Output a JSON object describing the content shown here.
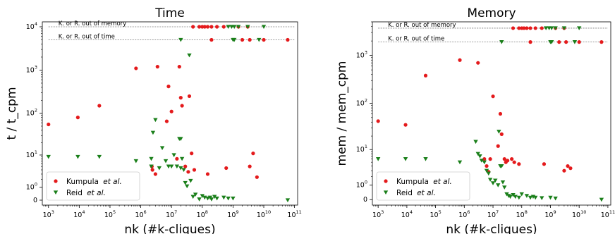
{
  "chart_data": [
    {
      "type": "scatter",
      "title": "Time",
      "xlabel": "nk (#k-cliques)",
      "ylabel": "t / t_cpm",
      "xscale": "log",
      "yscale": "symlog",
      "xlim": [
        630,
        126000000000
      ],
      "ylim": [
        -0.3,
        13000
      ],
      "xticks": [
        "10^3",
        "10^4",
        "10^5",
        "10^6",
        "10^7",
        "10^8",
        "10^9",
        "10^10",
        "10^11"
      ],
      "yticks": [
        "0",
        "10^0",
        "10^1",
        "10^2",
        "10^3",
        "10^4"
      ],
      "reference_lines": [
        {
          "label": "K. or R. out of memory",
          "y": 10000
        },
        {
          "label": "K. or R. out of time",
          "y": 5000
        }
      ],
      "legend": {
        "position": "lower-left"
      },
      "series": [
        {
          "name_prefix": "Kumpula",
          "name_italic": "et al.",
          "color": "#e41a1c",
          "marker": "circle",
          "points": [
            [
              1000,
              55
            ],
            [
              9000,
              80
            ],
            [
              45000,
              150
            ],
            [
              700000,
              1100
            ],
            [
              3500000,
              1200
            ],
            [
              8000000,
              420
            ],
            [
              18000000,
              1200
            ],
            [
              2300000,
              5
            ],
            [
              2400000,
              4
            ],
            [
              3000000,
              3
            ],
            [
              7000000,
              65
            ],
            [
              10000000,
              110
            ],
            [
              15000000,
              8
            ],
            [
              20000000,
              230
            ],
            [
              22000000,
              150
            ],
            [
              38000000,
              250
            ],
            [
              45000000,
              11
            ],
            [
              28000000,
              5
            ],
            [
              35000000,
              3.5
            ],
            [
              55000000,
              4
            ],
            [
              150000000,
              3
            ],
            [
              600000000,
              4.5
            ],
            [
              3500000000,
              5
            ],
            [
              4500000000,
              11
            ],
            [
              6000000000,
              2.4
            ],
            [
              50000000,
              10000
            ],
            [
              80000000,
              10000
            ],
            [
              100000000,
              10000
            ],
            [
              120000000,
              10000
            ],
            [
              150000000,
              10000
            ],
            [
              200000000,
              10000
            ],
            [
              300000000,
              10000
            ],
            [
              500000000,
              10000
            ],
            [
              1500000000,
              10000
            ],
            [
              3000000000,
              10000
            ],
            [
              200000000,
              5000
            ],
            [
              2000000000,
              5000
            ],
            [
              3500000000,
              5000
            ],
            [
              10000000000,
              5000
            ],
            [
              60000000000,
              5000
            ]
          ]
        },
        {
          "name_prefix": "Reid",
          "name_italic": "et al.",
          "color": "#1a7f1a",
          "marker": "triangle-down",
          "points": [
            [
              1000,
              9
            ],
            [
              9000,
              9
            ],
            [
              45000,
              9
            ],
            [
              700000,
              7
            ],
            [
              2200000,
              8
            ],
            [
              2200000,
              5
            ],
            [
              2500000,
              35
            ],
            [
              3000000,
              70
            ],
            [
              4000000,
              4.5
            ],
            [
              5000000,
              15
            ],
            [
              6500000,
              7
            ],
            [
              8000000,
              5
            ],
            [
              10000000,
              5
            ],
            [
              12000000,
              10
            ],
            [
              15000000,
              5
            ],
            [
              18000000,
              25
            ],
            [
              20000000,
              25
            ],
            [
              20000000,
              4.5
            ],
            [
              22000000,
              8
            ],
            [
              25000000,
              4
            ],
            [
              28000000,
              1.5
            ],
            [
              32000000,
              1.1
            ],
            [
              38000000,
              2200
            ],
            [
              42000000,
              1.8
            ],
            [
              50000000,
              0.2
            ],
            [
              60000000,
              0.35
            ],
            [
              80000000,
              0.05
            ],
            [
              100000000,
              0.25
            ],
            [
              120000000,
              0.15
            ],
            [
              150000000,
              0.1
            ],
            [
              180000000,
              0.15
            ],
            [
              200000000,
              0.05
            ],
            [
              250000000,
              0.2
            ],
            [
              300000000,
              0.1
            ],
            [
              500000000,
              0.15
            ],
            [
              700000000,
              0.1
            ],
            [
              1000000000,
              0.1
            ],
            [
              60000000000,
              0
            ],
            [
              20000000,
              5000
            ],
            [
              700000000,
              10000
            ],
            [
              900000000,
              10000
            ],
            [
              1100000000,
              10000
            ],
            [
              1500000000,
              10000
            ],
            [
              3000000000,
              10000
            ],
            [
              10000000000,
              10000
            ],
            [
              1000000000,
              5000
            ],
            [
              1100000000,
              5000
            ],
            [
              7000000000,
              5000
            ]
          ]
        }
      ]
    },
    {
      "type": "scatter",
      "title": "Memory",
      "xlabel": "nk (#k-cliques)",
      "ylabel": "mem / mem_cpm",
      "xscale": "log",
      "yscale": "symlog",
      "xlim": [
        630,
        126000000000
      ],
      "ylim": [
        -0.3,
        5000
      ],
      "xticks": [
        "10^3",
        "10^4",
        "10^5",
        "10^6",
        "10^7",
        "10^8",
        "10^9",
        "10^10",
        "10^11"
      ],
      "yticks": [
        "0",
        "10^0",
        "10^1",
        "10^2",
        "10^3"
      ],
      "reference_lines": [
        {
          "label": "K. or R. out of memory",
          "y": 3700
        },
        {
          "label": "K. or R. out of time",
          "y": 1900
        }
      ],
      "legend": {
        "position": "lower-left"
      },
      "series": [
        {
          "name_prefix": "Kumpula",
          "name_italic": "et al.",
          "color": "#e41a1c",
          "marker": "circle",
          "points": [
            [
              1000,
              42
            ],
            [
              9000,
              35
            ],
            [
              45000,
              380
            ],
            [
              700000,
              800
            ],
            [
              3000000,
              700
            ],
            [
              10000000,
              140
            ],
            [
              18000000,
              60
            ],
            [
              5000000,
              6
            ],
            [
              6000000,
              4
            ],
            [
              7000000,
              2.8
            ],
            [
              8000000,
              6
            ],
            [
              15000000,
              12
            ],
            [
              20000000,
              22
            ],
            [
              25000000,
              6
            ],
            [
              28000000,
              5
            ],
            [
              32000000,
              5.5
            ],
            [
              45000000,
              6
            ],
            [
              55000000,
              5
            ],
            [
              80000000,
              4.5
            ],
            [
              600000000,
              4.5
            ],
            [
              3000000000,
              3
            ],
            [
              4000000000,
              4
            ],
            [
              5000000000,
              3.5
            ],
            [
              50000000,
              3700
            ],
            [
              80000000,
              3700
            ],
            [
              100000000,
              3700
            ],
            [
              120000000,
              3700
            ],
            [
              150000000,
              3700
            ],
            [
              200000000,
              3700
            ],
            [
              300000000,
              3700
            ],
            [
              500000000,
              3700
            ],
            [
              1500000000,
              3700
            ],
            [
              3000000000,
              3700
            ],
            [
              200000000,
              1900
            ],
            [
              2000000000,
              1900
            ],
            [
              3500000000,
              1900
            ],
            [
              10000000000,
              1900
            ],
            [
              60000000000,
              1900
            ]
          ]
        },
        {
          "name_prefix": "Reid",
          "name_italic": "et al.",
          "color": "#1a7f1a",
          "marker": "triangle-down",
          "points": [
            [
              1000,
              6
            ],
            [
              9000,
              6
            ],
            [
              45000,
              6
            ],
            [
              700000,
              5
            ],
            [
              2500000,
              15
            ],
            [
              3000000,
              8
            ],
            [
              3500000,
              7
            ],
            [
              4000000,
              5.5
            ],
            [
              5000000,
              5
            ],
            [
              6000000,
              3
            ],
            [
              7000000,
              2.5
            ],
            [
              8000000,
              1.6
            ],
            [
              10000000,
              1.2
            ],
            [
              12000000,
              1.5
            ],
            [
              15000000,
              1
            ],
            [
              16000000,
              25
            ],
            [
              18000000,
              4
            ],
            [
              20000000,
              4
            ],
            [
              22000000,
              1.3
            ],
            [
              25000000,
              0.8
            ],
            [
              30000000,
              0.3
            ],
            [
              35000000,
              0.2
            ],
            [
              40000000,
              0.15
            ],
            [
              50000000,
              0.25
            ],
            [
              60000000,
              0.15
            ],
            [
              80000000,
              0.1
            ],
            [
              100000000,
              0.3
            ],
            [
              150000000,
              0.2
            ],
            [
              200000000,
              0.1
            ],
            [
              250000000,
              0.15
            ],
            [
              300000000,
              0.1
            ],
            [
              500000000,
              0.08
            ],
            [
              1000000000,
              0.1
            ],
            [
              1500000000,
              0.06
            ],
            [
              60000000000,
              0
            ],
            [
              20000000,
              1900
            ],
            [
              700000000,
              3700
            ],
            [
              900000000,
              3700
            ],
            [
              1100000000,
              3700
            ],
            [
              1500000000,
              3700
            ],
            [
              3000000000,
              3700
            ],
            [
              10000000000,
              3700
            ],
            [
              1000000000,
              1900
            ],
            [
              1100000000,
              1900
            ],
            [
              7000000000,
              1900
            ]
          ]
        }
      ]
    }
  ]
}
